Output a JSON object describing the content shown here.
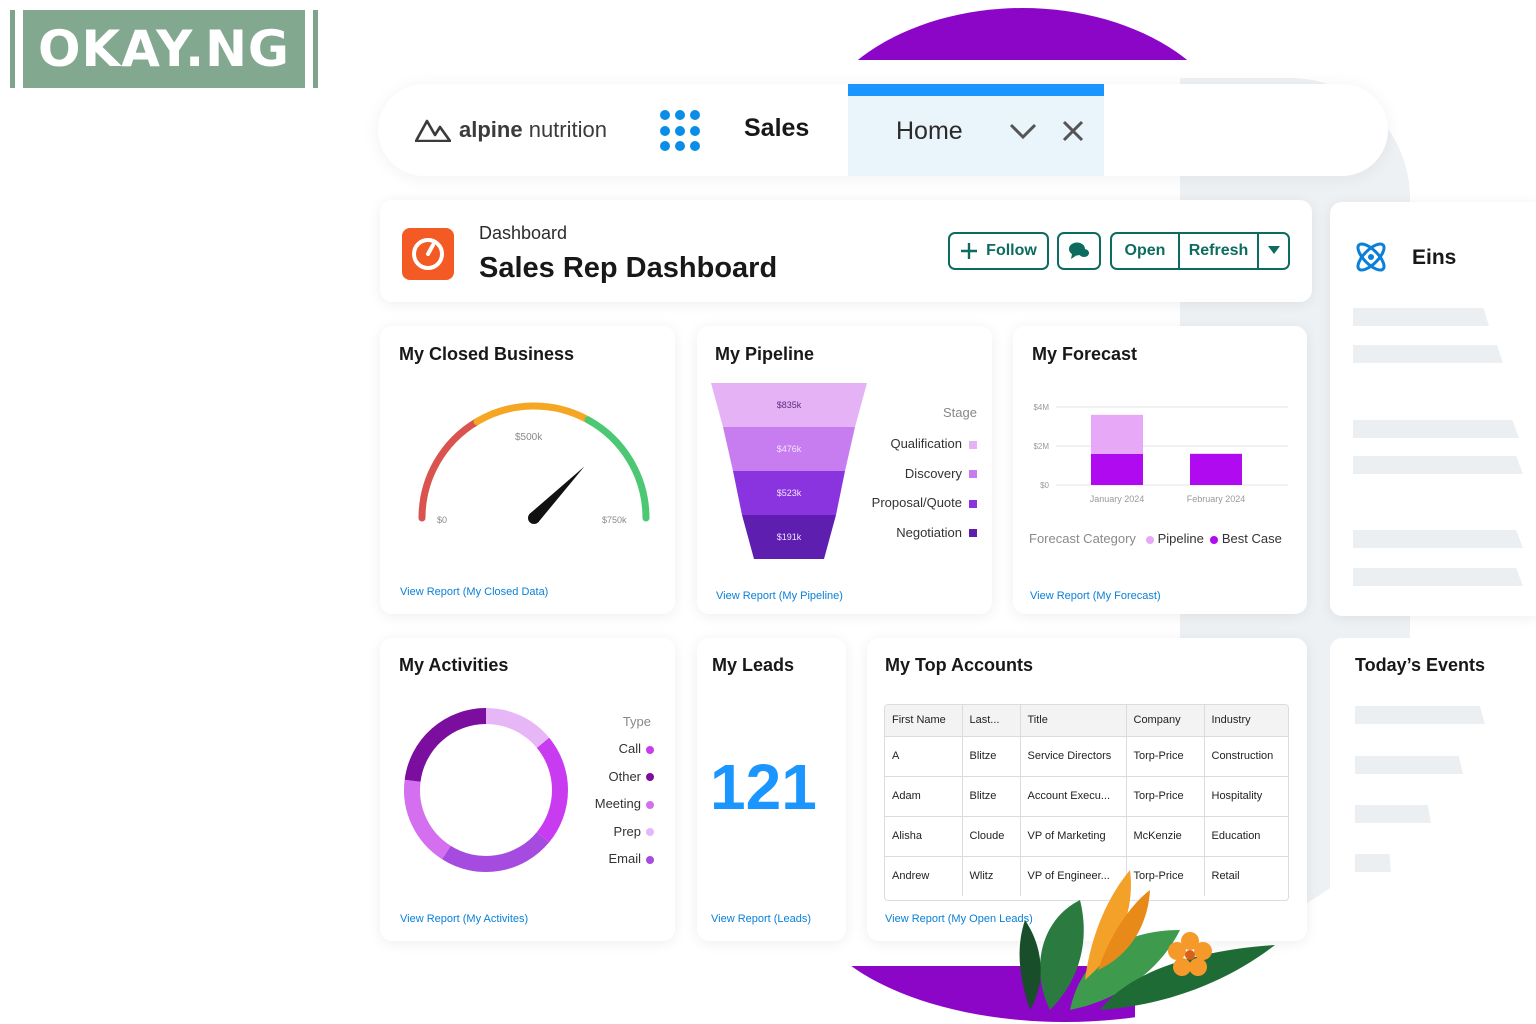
{
  "watermark": "OKAY.NG",
  "nav": {
    "brand_light": "alpine",
    "brand_rest": "nutrition",
    "app_name": "Sales",
    "tab_label": "Home"
  },
  "header": {
    "kicker": "Dashboard",
    "title": "Sales Rep Dashboard",
    "follow_label": "Follow",
    "open_label": "Open",
    "refresh_label": "Refresh"
  },
  "einstein": {
    "title": "Eins"
  },
  "closed_business": {
    "title": "My Closed Business",
    "gauge_min": "$0",
    "gauge_mid": "$500k",
    "gauge_max": "$750k",
    "link": "View Report (My Closed Data)"
  },
  "pipeline": {
    "title": "My Pipeline",
    "legend_title": "Stage",
    "link": "View Report (My Pipeline)"
  },
  "forecast": {
    "title": "My Forecast",
    "legend_title": "Forecast Category",
    "link": "View Report (My Forecast)"
  },
  "activities": {
    "title": "My Activities",
    "legend_title": "Type",
    "link": "View Report (My Activites)"
  },
  "leads": {
    "title": "My Leads",
    "value": "121",
    "link": "View Report (Leads)"
  },
  "top_accounts": {
    "title": "My Top Accounts",
    "columns": [
      "First Name",
      "Last...",
      "Title",
      "Company",
      "Industry"
    ],
    "rows": [
      [
        "A",
        "Blitze",
        "Service Directors",
        "Torp-Price",
        "Construction"
      ],
      [
        "Adam",
        "Blitze",
        "Account Execu...",
        "Torp-Price",
        "Hospitality"
      ],
      [
        "Alisha",
        "Cloude",
        "VP of Marketing",
        "McKenzie",
        "Education"
      ],
      [
        "Andrew",
        "Wlitz",
        "VP of Engineer...",
        "Torp-Price",
        "Retail"
      ]
    ],
    "link": "View Report (My Open Leads)"
  },
  "events": {
    "title": "Today’s Events"
  },
  "chart_data": [
    {
      "type": "funnel",
      "title": "My Pipeline",
      "categories": [
        "Qualification",
        "Discovery",
        "Proposal/Quote",
        "Negotiation"
      ],
      "values": [
        835,
        476,
        523,
        191
      ],
      "value_labels": [
        "$835k",
        "$476k",
        "$523k",
        "$191k"
      ],
      "colors": [
        "#e5b3f5",
        "#c77df0",
        "#8a34e0",
        "#5e1fb0"
      ]
    },
    {
      "type": "bar",
      "title": "My Forecast",
      "categories": [
        "January 2024",
        "February 2024"
      ],
      "y_ticks": [
        "$4M",
        "$2M",
        "$0"
      ],
      "ylim": [
        0,
        4
      ],
      "series": [
        {
          "name": "Pipeline",
          "color": "#e6a8f7",
          "values": [
            2,
            0
          ]
        },
        {
          "name": "Best Case",
          "color": "#b00af0",
          "values": [
            1.6,
            1.6
          ]
        }
      ],
      "legend_position": "bottom"
    },
    {
      "type": "pie",
      "title": "My Activities",
      "donut": true,
      "categories": [
        "Call",
        "Other",
        "Meeting",
        "Prep",
        "Email"
      ],
      "values": [
        22,
        23,
        18,
        14,
        23
      ],
      "colors": [
        "#c93bf0",
        "#7b0e9e",
        "#d46ff0",
        "#e7b6f7",
        "#a64be0"
      ]
    },
    {
      "type": "gauge",
      "title": "My Closed Business",
      "min": 0,
      "max": 750,
      "value": 560,
      "tick_labels": [
        "$0",
        "$500k",
        "$750k"
      ]
    }
  ]
}
